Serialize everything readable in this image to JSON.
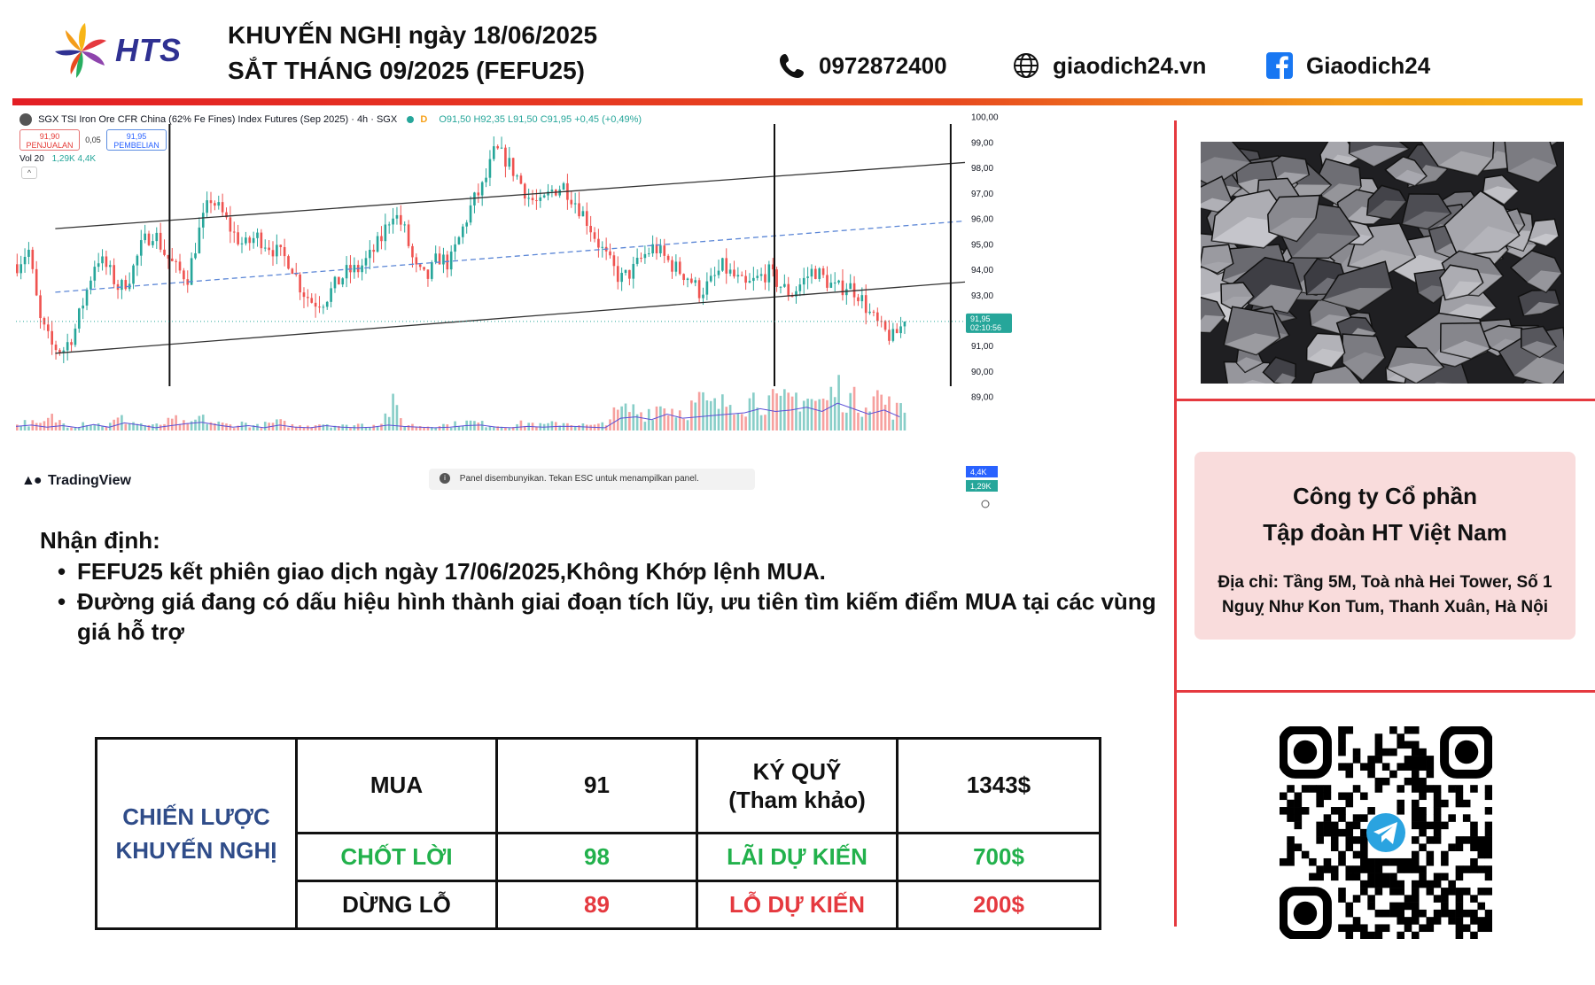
{
  "header": {
    "logo_text": "HTS",
    "title_line1": "KHUYẾN NGHỊ ngày 18/06/2025",
    "title_line2": "SẮT THÁNG 09/2025 (FEFU25)",
    "phone": "0972872400",
    "website": "giaodich24.vn",
    "facebook": "Giaodich24",
    "icons": [
      "phone-icon",
      "globe-icon",
      "facebook-icon"
    ]
  },
  "chart_header": {
    "symbol": "SGX TSI Iron Ore CFR China (62% Fe Fines) Index Futures (Sep 2025) · 4h · SGX",
    "flag": "D",
    "ohlc": "O91,50 H92,35 L91,50 C91,95 +0,45 (+0,49%)",
    "sell_price": "91,90",
    "sell_label": "PENJUALAN",
    "spread": "0,05",
    "buy_price": "91,95",
    "buy_label": "PEMBELIAN",
    "vol_label": "Vol 20",
    "vol_values": "1,29K 4,4K",
    "collapse": "^",
    "tv_logo": "TradingView",
    "panel_hidden": "Panel disembunyikan. Tekan ESC untuk menampilkan panel.",
    "last_price_tag": "91,95",
    "countdown_tag": "02:10:56",
    "vol_tag_1": "4,4K",
    "vol_tag_2": "1,29K"
  },
  "chart_data": {
    "type": "candlestick",
    "timeframe": "4h",
    "ylim": [
      88.5,
      100.2
    ],
    "yticks": [
      {
        "v": 100,
        "label": "100,00"
      },
      {
        "v": 99,
        "label": "99,00"
      },
      {
        "v": 98,
        "label": "98,00"
      },
      {
        "v": 97,
        "label": "97,00"
      },
      {
        "v": 96,
        "label": "96,00"
      },
      {
        "v": 95,
        "label": "95,00"
      },
      {
        "v": 94,
        "label": "94,00"
      },
      {
        "v": 93,
        "label": "93,00"
      },
      {
        "v": 91,
        "label": "91,00"
      },
      {
        "v": 90,
        "label": "90,00"
      },
      {
        "v": 89,
        "label": "89,00"
      }
    ],
    "close_path": [
      94.2,
      94.8,
      92.0,
      91.0,
      90.8,
      91.5,
      93.0,
      94.5,
      94.0,
      93.2,
      93.8,
      95.0,
      95.5,
      94.6,
      94.0,
      93.7,
      95.5,
      96.8,
      96.2,
      95.4,
      94.9,
      95.3,
      95.0,
      94.6,
      94.3,
      93.2,
      92.7,
      92.8,
      93.4,
      93.9,
      94.0,
      94.5,
      95.2,
      96.3,
      95.6,
      94.0,
      93.6,
      94.5,
      94.2,
      95.4,
      96.6,
      97.3,
      98.7,
      98.3,
      97.6,
      96.8,
      96.5,
      97.1,
      97.3,
      96.7,
      96.0,
      95.1,
      94.3,
      93.6,
      93.9,
      94.5,
      94.9,
      94.4,
      94.0,
      93.7,
      93.1,
      93.5,
      94.1,
      93.7,
      93.3,
      93.6,
      93.9,
      93.4,
      93.0,
      93.5,
      94.0,
      93.6,
      93.2,
      93.4,
      93.0,
      92.2,
      91.6,
      91.3,
      91.95
    ],
    "volume_path": [
      0.15,
      0.2,
      0.12,
      0.3,
      0.18,
      0.1,
      0.22,
      0.15,
      0.12,
      0.28,
      0.2,
      0.15,
      0.1,
      0.18,
      0.25,
      0.12,
      0.3,
      0.2,
      0.15,
      0.12,
      0.18,
      0.1,
      0.15,
      0.2,
      0.12,
      0.1,
      0.15,
      0.18,
      0.12,
      0.1,
      0.15,
      0.12,
      0.2,
      0.6,
      0.15,
      0.12,
      0.1,
      0.15,
      0.12,
      0.18,
      0.2,
      0.15,
      0.12,
      0.1,
      0.15,
      0.18,
      0.12,
      0.15,
      0.2,
      0.15,
      0.12,
      0.1,
      0.3,
      0.45,
      0.5,
      0.4,
      0.55,
      0.6,
      0.45,
      0.5,
      0.7,
      0.55,
      0.6,
      0.75,
      0.65,
      0.8,
      0.7,
      0.6,
      0.75,
      0.85,
      0.7,
      0.65,
      1.0,
      0.8,
      0.6,
      0.9,
      0.75,
      0.5,
      0.45
    ],
    "channel_upper": [
      [
        0.045,
        95.6
      ],
      [
        1.0,
        98.2
      ]
    ],
    "channel_lower": [
      [
        0.045,
        90.7
      ],
      [
        1.0,
        93.5
      ]
    ],
    "channel_mid": [
      [
        0.045,
        93.1
      ],
      [
        1.0,
        95.9
      ]
    ],
    "vertical_markers": [
      0.165,
      0.8,
      0.985
    ],
    "last_price": 91.95
  },
  "analysis": {
    "heading": "Nhận định:",
    "points": [
      "FEFU25 kết phiên giao dịch ngày 17/06/2025,Không Khớp lệnh MUA.",
      "Đường giá đang có dấu hiệu hình thành giai đoạn tích lũy, ưu tiên tìm kiếm điểm MUA tại các vùng giá hỗ trợ"
    ]
  },
  "strategy": {
    "label_line1": "CHIẾN LƯỢC",
    "label_line2": "KHUYẾN NGHỊ",
    "rows": [
      {
        "action": "MUA",
        "price": "91",
        "metric_line1": "KÝ QUỸ",
        "metric_line2": "(Tham khảo)",
        "amount": "1343$"
      },
      {
        "action": "CHỐT LỜI",
        "price": "98",
        "metric_line1": "LÃI DỰ KIẾN",
        "metric_line2": "",
        "amount": "700$"
      },
      {
        "action": "DỪNG LỖ",
        "price": "89",
        "metric_line1": "LỖ DỰ KIẾN",
        "metric_line2": "",
        "amount": "200$"
      }
    ],
    "colors": {
      "label": "#2f4c89",
      "profit": "#22b14c",
      "loss": "#e5393f"
    }
  },
  "company": {
    "name_line1": "Công ty Cổ phần",
    "name_line2": "Tập đoàn HT Việt Nam",
    "address_line1": "Địa chỉ: Tầng 5M, Toà nhà Hei Tower, Số 1",
    "address_line2": "Nguỵ Như Kon Tum, Thanh Xuân, Hà Nội"
  },
  "colors": {
    "accent_red": "#e5393f",
    "candle_up": "#26a69a",
    "candle_down": "#ef5350",
    "channel_mid": "#5b86d6",
    "brand_blue": "#2f3192"
  },
  "images": {
    "ore_photo": "iron-ore-lumps-photo",
    "qr": "telegram-qr-code"
  }
}
